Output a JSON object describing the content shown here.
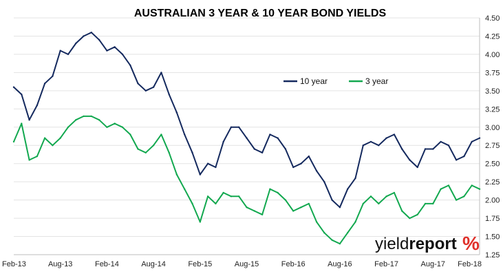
{
  "chart_data": {
    "type": "line",
    "title": "AUSTRALIAN 3 YEAR & 10 YEAR BOND YIELDS",
    "xlabel": "",
    "ylabel": "",
    "x_ticks": [
      "Feb-13",
      "Aug-13",
      "Feb-14",
      "Aug-14",
      "Feb-15",
      "Aug-15",
      "Feb-16",
      "Aug-16",
      "Feb-17",
      "Aug-17",
      "Feb-18"
    ],
    "y_ticks": [
      "1.25",
      "1.50",
      "1.75",
      "2.00",
      "2.25",
      "2.50",
      "2.75",
      "3.00",
      "3.25",
      "3.50",
      "3.75",
      "4.00",
      "4.25",
      "4.50"
    ],
    "ylim": [
      1.25,
      4.5
    ],
    "y_axis_position": "right",
    "grid": "horizontal",
    "legend_position": "top-center",
    "series": [
      {
        "name": "10 year",
        "color": "#14295e",
        "x": [
          "Feb-13",
          "Mar-13",
          "Apr-13",
          "May-13",
          "Jun-13",
          "Jul-13",
          "Aug-13",
          "Sep-13",
          "Oct-13",
          "Nov-13",
          "Dec-13",
          "Jan-14",
          "Feb-14",
          "Mar-14",
          "Apr-14",
          "May-14",
          "Jun-14",
          "Jul-14",
          "Aug-14",
          "Sep-14",
          "Oct-14",
          "Nov-14",
          "Dec-14",
          "Jan-15",
          "Feb-15",
          "Mar-15",
          "Apr-15",
          "May-15",
          "Jun-15",
          "Jul-15",
          "Aug-15",
          "Sep-15",
          "Oct-15",
          "Nov-15",
          "Dec-15",
          "Jan-16",
          "Feb-16",
          "Mar-16",
          "Apr-16",
          "May-16",
          "Jun-16",
          "Jul-16",
          "Aug-16",
          "Sep-16",
          "Oct-16",
          "Nov-16",
          "Dec-16",
          "Jan-17",
          "Feb-17",
          "Mar-17",
          "Apr-17",
          "May-17",
          "Jun-17",
          "Jul-17",
          "Aug-17",
          "Sep-17",
          "Oct-17",
          "Nov-17",
          "Dec-17",
          "Jan-18",
          "Feb-18"
        ],
        "values": [
          3.55,
          3.45,
          3.1,
          3.3,
          3.6,
          3.7,
          4.05,
          4.0,
          4.15,
          4.25,
          4.3,
          4.2,
          4.05,
          4.1,
          4.0,
          3.85,
          3.6,
          3.5,
          3.55,
          3.75,
          3.45,
          3.2,
          2.9,
          2.65,
          2.35,
          2.5,
          2.45,
          2.8,
          3.0,
          3.0,
          2.85,
          2.7,
          2.65,
          2.9,
          2.85,
          2.7,
          2.45,
          2.5,
          2.6,
          2.4,
          2.25,
          2.0,
          1.9,
          2.15,
          2.3,
          2.75,
          2.8,
          2.75,
          2.85,
          2.9,
          2.7,
          2.55,
          2.45,
          2.7,
          2.7,
          2.8,
          2.75,
          2.55,
          2.6,
          2.8,
          2.85
        ]
      },
      {
        "name": "3 year",
        "color": "#12a84f",
        "x": [
          "Feb-13",
          "Mar-13",
          "Apr-13",
          "May-13",
          "Jun-13",
          "Jul-13",
          "Aug-13",
          "Sep-13",
          "Oct-13",
          "Nov-13",
          "Dec-13",
          "Jan-14",
          "Feb-14",
          "Mar-14",
          "Apr-14",
          "May-14",
          "Jun-14",
          "Jul-14",
          "Aug-14",
          "Sep-14",
          "Oct-14",
          "Nov-14",
          "Dec-14",
          "Jan-15",
          "Feb-15",
          "Mar-15",
          "Apr-15",
          "May-15",
          "Jun-15",
          "Jul-15",
          "Aug-15",
          "Sep-15",
          "Oct-15",
          "Nov-15",
          "Dec-15",
          "Jan-16",
          "Feb-16",
          "Mar-16",
          "Apr-16",
          "May-16",
          "Jun-16",
          "Jul-16",
          "Aug-16",
          "Sep-16",
          "Oct-16",
          "Nov-16",
          "Dec-16",
          "Jan-17",
          "Feb-17",
          "Mar-17",
          "Apr-17",
          "May-17",
          "Jun-17",
          "Jul-17",
          "Aug-17",
          "Sep-17",
          "Oct-17",
          "Nov-17",
          "Dec-17",
          "Jan-18",
          "Feb-18"
        ],
        "values": [
          2.8,
          3.05,
          2.55,
          2.6,
          2.85,
          2.75,
          2.85,
          3.0,
          3.1,
          3.15,
          3.15,
          3.1,
          3.0,
          3.05,
          3.0,
          2.9,
          2.7,
          2.65,
          2.75,
          2.9,
          2.65,
          2.35,
          2.15,
          1.95,
          1.7,
          2.05,
          1.95,
          2.1,
          2.05,
          2.05,
          1.9,
          1.85,
          1.8,
          2.15,
          2.1,
          2.0,
          1.85,
          1.9,
          1.95,
          1.7,
          1.55,
          1.45,
          1.4,
          1.55,
          1.7,
          1.95,
          2.05,
          1.95,
          2.05,
          2.1,
          1.85,
          1.75,
          1.8,
          1.95,
          1.95,
          2.15,
          2.2,
          2.0,
          2.05,
          2.2,
          2.15
        ]
      }
    ]
  },
  "brand": {
    "name_regular": "yield",
    "name_bold": "report",
    "symbol": "%",
    "symbol_color": "#e0302a"
  }
}
